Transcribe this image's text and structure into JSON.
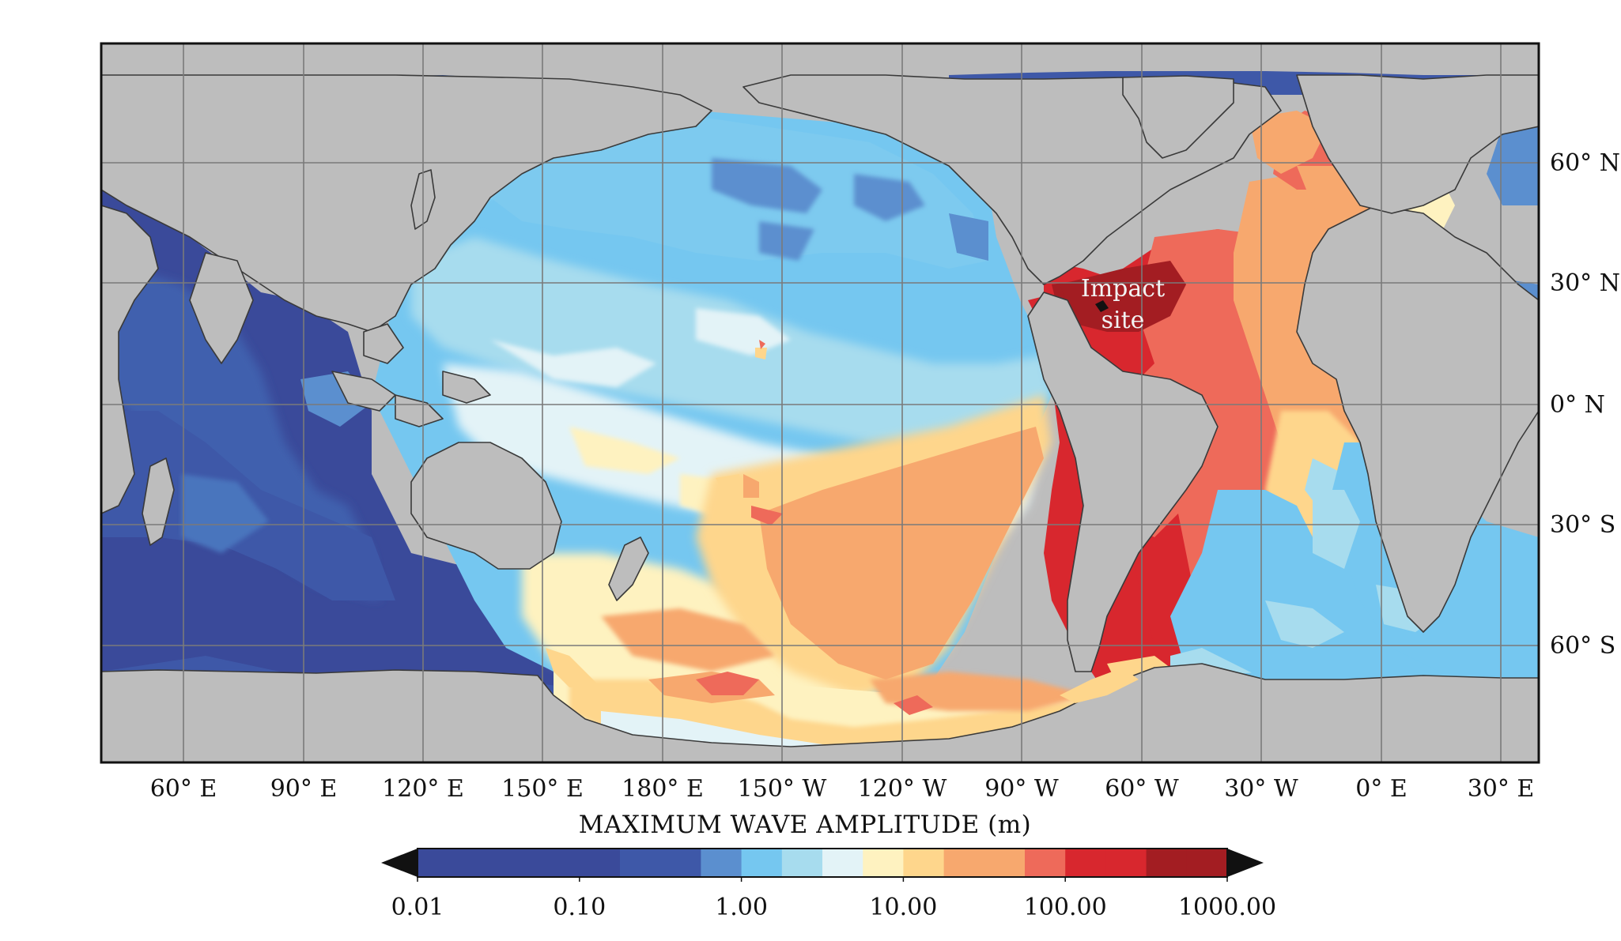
{
  "map": {
    "lon_labels": [
      "60° E",
      "90° E",
      "120° E",
      "150° E",
      "180° E",
      "150° W",
      "120° W",
      "90° W",
      "60° W",
      "30° W",
      "0° E",
      "30° E"
    ],
    "lat_labels": [
      "60° N",
      "30° N",
      "0° N",
      "30° S",
      "60° S"
    ],
    "annotation": {
      "line1": "Impact",
      "line2": "site"
    },
    "colors": {
      "land": "#bdbdbd",
      "frame": "#111111",
      "gridline": "#7a7a7a",
      "coastline": "#3a3a3a"
    }
  },
  "colorbar": {
    "title": "MAXIMUM WAVE AMPLITUDE (m)",
    "tick_labels": [
      "0.01",
      "0.10",
      "1.00",
      "10.00",
      "100.00",
      "1000.00"
    ],
    "extend": "both",
    "bins": [
      {
        "color": "#3a4a9a"
      },
      {
        "color": "#3a4a9a"
      },
      {
        "color": "#3a4a9a"
      },
      {
        "color": "#3a4a9a"
      },
      {
        "color": "#3a4a9a"
      },
      {
        "color": "#3e58a8"
      },
      {
        "color": "#3e58a8"
      },
      {
        "color": "#5b8fcf"
      },
      {
        "color": "#75c7f0"
      },
      {
        "color": "#a7dcee"
      },
      {
        "color": "#e3f3f7"
      },
      {
        "color": "#fef2c0"
      },
      {
        "color": "#fed68c"
      },
      {
        "color": "#f7a86e"
      },
      {
        "color": "#f7a86e"
      },
      {
        "color": "#ee6a5a"
      },
      {
        "color": "#d8272e"
      },
      {
        "color": "#d8272e"
      },
      {
        "color": "#a31d22"
      },
      {
        "color": "#a31d22"
      }
    ]
  }
}
